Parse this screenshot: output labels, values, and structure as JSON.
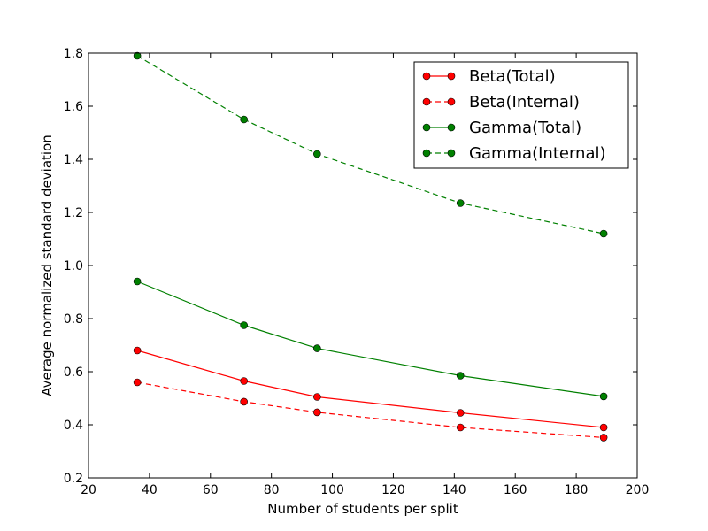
{
  "chart_data": {
    "type": "line",
    "title": "",
    "xlabel": "Number of students per split",
    "ylabel": "Average normalized standard deviation",
    "xlim": [
      20,
      200
    ],
    "ylim": [
      0.2,
      1.8
    ],
    "xticks": [
      20,
      40,
      60,
      80,
      100,
      120,
      140,
      160,
      180,
      200
    ],
    "yticks": [
      0.2,
      0.4,
      0.6,
      0.8,
      1.0,
      1.2,
      1.4,
      1.6,
      1.8
    ],
    "xtick_labels": [
      "20",
      "40",
      "60",
      "80",
      "100",
      "120",
      "140",
      "160",
      "180",
      "200"
    ],
    "ytick_labels": [
      "0.2",
      "0.4",
      "0.6",
      "0.8",
      "1.0",
      "1.2",
      "1.4",
      "1.6",
      "1.8"
    ],
    "grid": false,
    "legend_position": "top-right",
    "x": [
      36,
      71,
      95,
      142,
      189
    ],
    "series": [
      {
        "name": "Beta(Total)",
        "color": "#ff0000",
        "dash": "solid",
        "values": [
          0.68,
          0.565,
          0.505,
          0.445,
          0.39
        ]
      },
      {
        "name": "Beta(Internal)",
        "color": "#ff0000",
        "dash": "dashed",
        "values": [
          0.56,
          0.487,
          0.447,
          0.39,
          0.352
        ]
      },
      {
        "name": "Gamma(Total)",
        "color": "#008000",
        "dash": "solid",
        "values": [
          0.94,
          0.775,
          0.688,
          0.585,
          0.507
        ]
      },
      {
        "name": "Gamma(Internal)",
        "color": "#008000",
        "dash": "dashed",
        "values": [
          1.79,
          1.55,
          1.42,
          1.235,
          1.12
        ]
      }
    ]
  }
}
